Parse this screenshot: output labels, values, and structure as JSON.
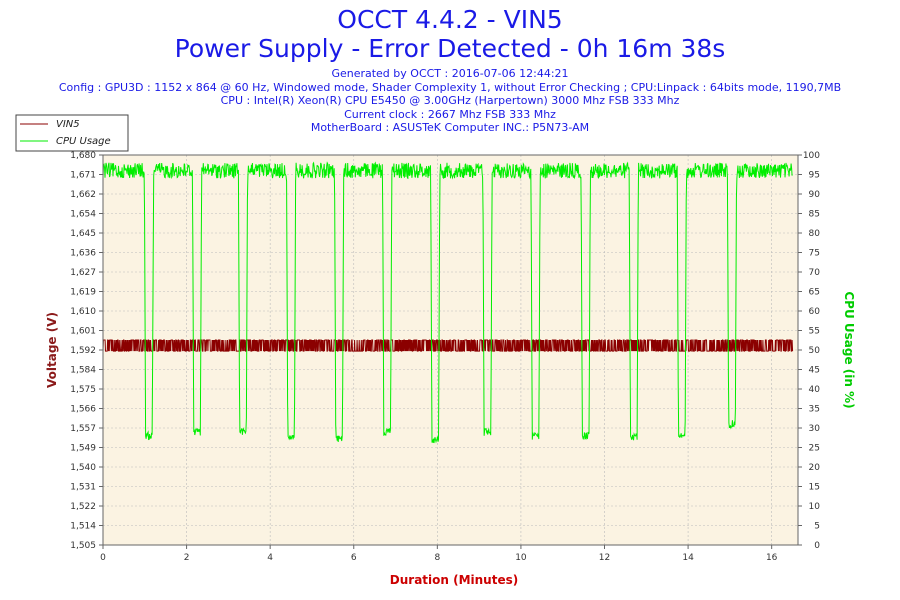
{
  "header": {
    "title": "OCCT 4.4.2 - VIN5",
    "subtitle": "Power Supply - Error Detected - 0h 16m 38s",
    "generated": "Generated by OCCT : 2016-07-06 12:44:21",
    "config": "Config : GPU3D : 1152 x 864 @ 60 Hz, Windowed mode, Shader Complexity 1, without Error Checking ; CPU:Linpack : 64bits mode, 1190,7MB",
    "cpu": "CPU : Intel(R) Xeon(R) CPU E5450 @ 3.00GHz (Harpertown) 3000 Mhz FSB 333 Mhz",
    "clock": "Current clock : 2667 Mhz FSB 333 Mhz",
    "motherboard": "MotherBoard : ASUSTeK Computer INC.: P5N73-AM"
  },
  "colors": {
    "vin5": "#8b0000",
    "cpu": "#00ee00",
    "plot_bg": "#fbf3e2",
    "header_text": "#1a1ae6",
    "axis_title_x": "#cc0000",
    "axis_title_left": "#8b1a1a",
    "axis_title_right": "#00cc00"
  },
  "chart_data": {
    "type": "line",
    "xlabel": "Duration (Minutes)",
    "ylabel_left": "Voltage (V)",
    "ylabel_right": "CPU Usage (in %)",
    "xlim": [
      0,
      16.63
    ],
    "ylim_left": [
      1.505,
      1.68
    ],
    "ylim_right": [
      0,
      100
    ],
    "x_ticks": [
      "0",
      "2",
      "4",
      "6",
      "8",
      "10",
      "12",
      "14",
      "16"
    ],
    "y_left_ticks": [
      "1,505",
      "1,514",
      "1,522",
      "1,531",
      "1,540",
      "1,549",
      "1,557",
      "1,566",
      "1,575",
      "1,584",
      "1,592",
      "1,601",
      "1,610",
      "1,619",
      "1,627",
      "1,636",
      "1,645",
      "1,654",
      "1,662",
      "1,671",
      "1,680"
    ],
    "y_right_ticks": [
      "0",
      "5",
      "10",
      "15",
      "20",
      "25",
      "30",
      "35",
      "40",
      "45",
      "50",
      "55",
      "60",
      "65",
      "70",
      "75",
      "80",
      "85",
      "90",
      "95",
      "100"
    ],
    "grid": true,
    "legend": {
      "position": "top-left",
      "entries": [
        "VIN5",
        "CPU Usage"
      ]
    },
    "series": [
      {
        "name": "VIN5",
        "color": "#8b0000",
        "axis": "left",
        "levels_volts": [
          1.592,
          1.597
        ],
        "oscillates_between_levels": true,
        "x_range": [
          0,
          16.5
        ]
      },
      {
        "name": "CPU Usage",
        "color": "#00ee00",
        "axis": "right",
        "baseline_percent": 98,
        "x_range": [
          0,
          16.5
        ],
        "dips": [
          {
            "x": 1.1,
            "min_percent": 27
          },
          {
            "x": 2.25,
            "min_percent": 28
          },
          {
            "x": 3.35,
            "min_percent": 28
          },
          {
            "x": 4.5,
            "min_percent": 27
          },
          {
            "x": 5.65,
            "min_percent": 26
          },
          {
            "x": 6.8,
            "min_percent": 28
          },
          {
            "x": 7.95,
            "min_percent": 26
          },
          {
            "x": 9.2,
            "min_percent": 28
          },
          {
            "x": 10.35,
            "min_percent": 27
          },
          {
            "x": 11.55,
            "min_percent": 27
          },
          {
            "x": 12.7,
            "min_percent": 27
          },
          {
            "x": 13.85,
            "min_percent": 27
          },
          {
            "x": 15.05,
            "min_percent": 30
          }
        ]
      }
    ]
  }
}
